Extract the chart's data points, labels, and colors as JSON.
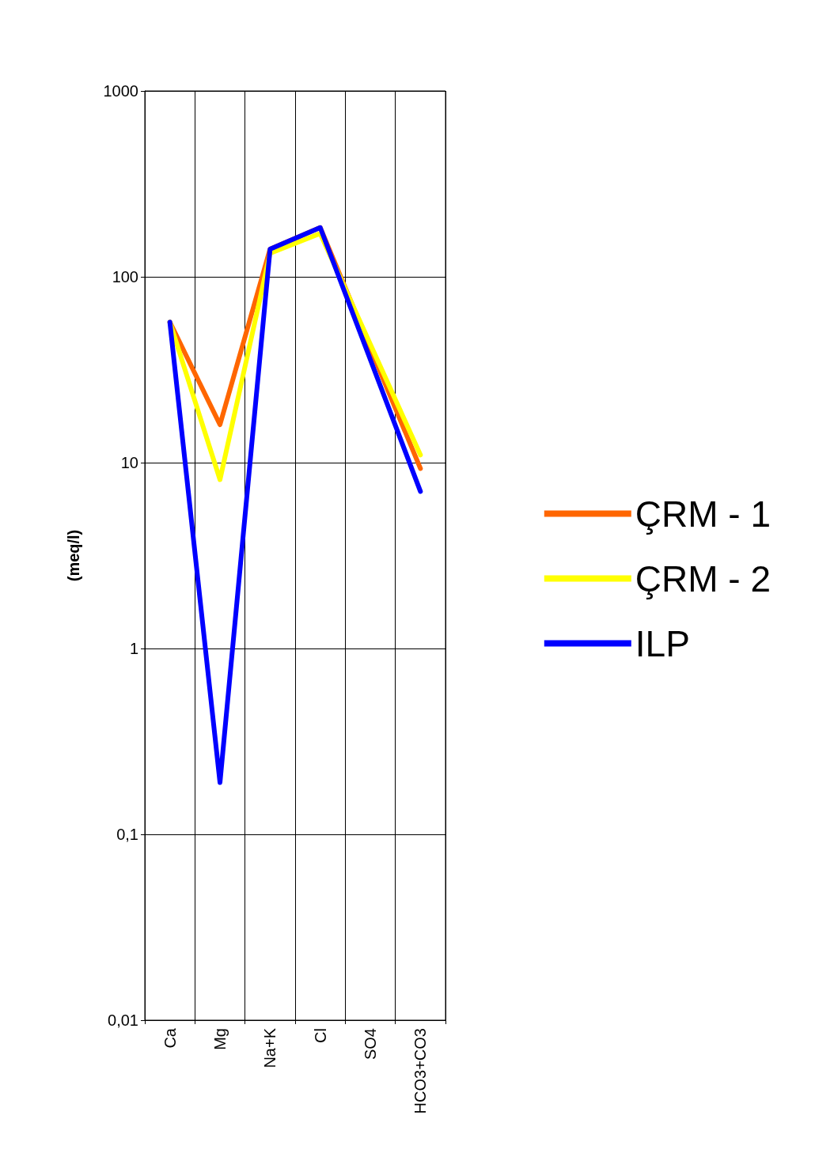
{
  "chart_data": {
    "type": "line",
    "ylabel": "(meq/l)",
    "categories": [
      "Ca",
      "Mg",
      "Na+K",
      "Cl",
      "SO4",
      "HCO3+CO3"
    ],
    "series": [
      {
        "name": "ÇRM - 1",
        "color": "#ff6600",
        "values": [
          57,
          16,
          141,
          184,
          null,
          9.3
        ]
      },
      {
        "name": "ÇRM - 2",
        "color": "#ffff00",
        "values": [
          57,
          8.1,
          134,
          171,
          null,
          11
        ]
      },
      {
        "name": "ILP",
        "color": "#0000ff",
        "values": [
          57,
          0.19,
          141,
          184,
          null,
          7
        ]
      }
    ],
    "log": "y",
    "ylim": [
      0.01,
      1000
    ],
    "yticks": [
      {
        "value": 0.01,
        "label": "0,01"
      },
      {
        "value": 0.1,
        "label": "0,1"
      },
      1,
      10,
      100,
      1000
    ],
    "grid": true,
    "legend": "right",
    "marker": "none",
    "line_style": "solid"
  }
}
